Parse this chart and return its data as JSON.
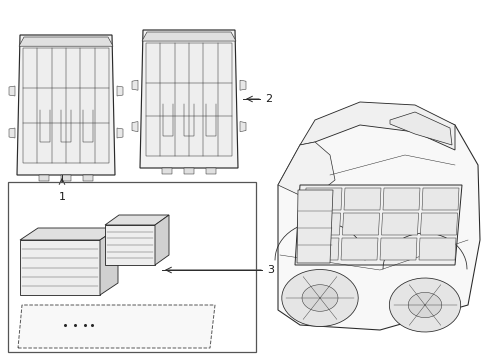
{
  "bg_color": "#ffffff",
  "line_color": "#2a2a2a",
  "label_color": "#1a1a1a",
  "fig_width": 4.9,
  "fig_height": 3.6,
  "dpi": 100
}
